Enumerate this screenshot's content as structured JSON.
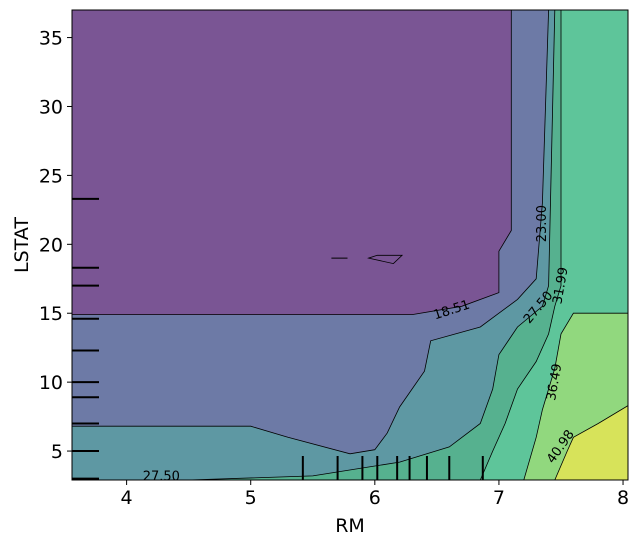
{
  "chart_data": {
    "type": "contour",
    "title": "",
    "xlabel": "RM",
    "ylabel": "LSTAT",
    "xlim": [
      3.56,
      8.04
    ],
    "ylim": [
      2.9,
      37.0
    ],
    "x_ticks": [
      4,
      5,
      6,
      7,
      8
    ],
    "y_ticks": [
      5,
      10,
      15,
      20,
      25,
      30,
      35
    ],
    "x_tick_labels": [
      "4",
      "5",
      "6",
      "7",
      "8"
    ],
    "y_tick_labels": [
      "5",
      "10",
      "15",
      "20",
      "25",
      "30",
      "35"
    ],
    "levels": [
      18.51,
      23.0,
      27.5,
      31.99,
      36.49,
      40.98
    ],
    "level_labels": [
      "18.51",
      "23.00",
      "27.50",
      "31.99",
      "36.49",
      "40.98"
    ],
    "contour_label_extra": "27.50",
    "colors": [
      "#7a5594",
      "#6d7aa6",
      "#5e98a3",
      "#56b18f",
      "#5ec59a",
      "#91d87e",
      "#d7e35a"
    ],
    "band_boundaries": [
      {
        "level": 18.51,
        "points": [
          [
            3.56,
            14.9
          ],
          [
            6.3,
            14.9
          ],
          [
            6.7,
            15.5
          ],
          [
            7.0,
            16.5
          ],
          [
            7.0,
            17.5
          ],
          [
            7.0,
            19.5
          ],
          [
            7.1,
            21.0
          ],
          [
            7.1,
            37.0
          ]
        ]
      },
      {
        "level": 23.0,
        "points": [
          [
            3.56,
            6.8
          ],
          [
            5.0,
            6.8
          ],
          [
            5.3,
            6.0
          ],
          [
            5.8,
            4.8
          ],
          [
            6.0,
            5.1
          ],
          [
            6.1,
            6.3
          ],
          [
            6.2,
            8.2
          ],
          [
            6.4,
            10.8
          ],
          [
            6.45,
            13.0
          ],
          [
            6.85,
            14.0
          ],
          [
            7.0,
            15.0
          ],
          [
            7.15,
            16.0
          ],
          [
            7.3,
            17.5
          ],
          [
            7.35,
            23.0
          ],
          [
            7.4,
            37.0
          ]
        ]
      },
      {
        "level": 27.5,
        "points": [
          [
            3.56,
            2.9
          ],
          [
            4.5,
            2.9
          ],
          [
            5.5,
            3.2
          ],
          [
            6.2,
            4.2
          ],
          [
            6.6,
            5.3
          ],
          [
            6.85,
            7.0
          ],
          [
            6.95,
            9.5
          ],
          [
            7.0,
            12.0
          ],
          [
            7.15,
            14.0
          ],
          [
            7.35,
            15.5
          ],
          [
            7.4,
            17.0
          ],
          [
            7.45,
            37.0
          ]
        ]
      },
      {
        "level": 31.99,
        "points": [
          [
            6.85,
            2.9
          ],
          [
            6.95,
            5.0
          ],
          [
            7.05,
            7.0
          ],
          [
            7.15,
            9.5
          ],
          [
            7.3,
            11.5
          ],
          [
            7.4,
            13.5
          ],
          [
            7.45,
            15.5
          ],
          [
            7.5,
            17.0
          ],
          [
            7.5,
            37.0
          ]
        ]
      },
      {
        "level": 36.49,
        "points": [
          [
            7.2,
            2.9
          ],
          [
            7.3,
            6.0
          ],
          [
            7.35,
            8.0
          ],
          [
            7.45,
            11.0
          ],
          [
            7.5,
            13.5
          ],
          [
            7.6,
            15.0
          ],
          [
            8.04,
            15.0
          ]
        ]
      },
      {
        "level": 40.98,
        "points": [
          [
            7.45,
            2.9
          ],
          [
            7.55,
            5.0
          ],
          [
            7.6,
            6.0
          ],
          [
            7.8,
            7.0
          ],
          [
            8.04,
            8.3
          ]
        ]
      }
    ],
    "island_low": [
      [
        5.95,
        19.0
      ],
      [
        6.15,
        18.6
      ],
      [
        6.22,
        19.2
      ],
      [
        6.02,
        19.2
      ]
    ],
    "island_dash": [
      [
        5.65,
        19.0
      ],
      [
        5.78,
        19.0
      ]
    ],
    "rug_x": [
      5.42,
      5.7,
      5.9,
      6.02,
      6.18,
      6.28,
      6.42,
      6.6,
      6.87
    ],
    "rug_y": [
      3.0,
      5.0,
      7.0,
      8.9,
      10.0,
      12.3,
      14.6,
      17.0,
      18.3,
      23.3
    ]
  }
}
